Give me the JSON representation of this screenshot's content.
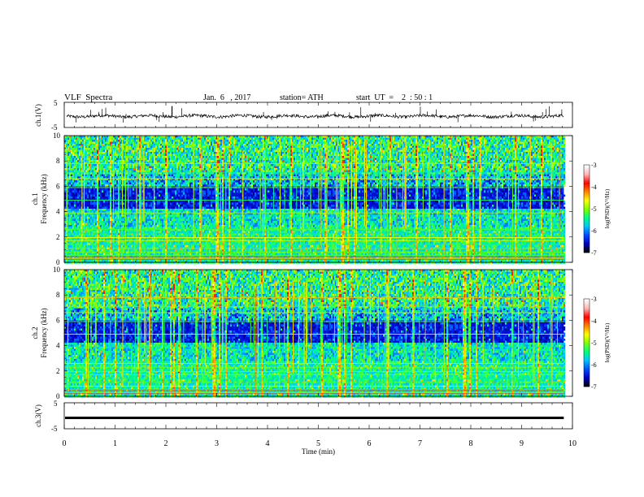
{
  "header": {
    "title": "VLF  Spectra",
    "date": "Jan.  6   , 2017",
    "station": "station= ATH",
    "start": "start  UT  =    2  : 50 : 1"
  },
  "chart_data": [
    {
      "type": "line",
      "panel": "ch1-waveform",
      "ylabel": "ch.1(V)",
      "ylim": [
        -5,
        5
      ],
      "yticks": [
        5,
        -5
      ],
      "series": [
        {
          "description_values_sampled": "noise trace around -0.5 V with spikes",
          "level": -0.5
        }
      ]
    },
    {
      "type": "heatmap",
      "panel": "ch1-spectrogram",
      "label_channel": "ch.1",
      "ylabel": "Frequency  (kHz)",
      "ylim": [
        0,
        10
      ],
      "yticks": [
        0,
        2,
        4,
        6,
        8,
        10
      ],
      "colorbar": {
        "label": "log(PSD)(V²/Hz)",
        "range": [
          -7,
          -3
        ],
        "ticks": [
          -3,
          -4,
          -5,
          -6,
          -7
        ]
      }
    },
    {
      "type": "heatmap",
      "panel": "ch2-spectrogram",
      "label_channel": "ch.2",
      "ylabel": "Frequency  (kHz)",
      "ylim": [
        0,
        10
      ],
      "yticks": [
        0,
        2,
        4,
        6,
        8,
        10
      ],
      "colorbar": {
        "label": "log(PSD)(V²/Hz)",
        "range": [
          -7,
          -3
        ],
        "ticks": [
          -3,
          -4,
          -5,
          -6,
          -7
        ]
      }
    },
    {
      "type": "line",
      "panel": "ch3-waveform",
      "ylabel": "ch.3(V)",
      "ylim": [
        -5,
        5
      ],
      "yticks": [
        5,
        -5
      ],
      "series": [
        {
          "level": -0.8
        }
      ]
    }
  ],
  "xaxis": {
    "label": "Time  (min)",
    "range": [
      0,
      10
    ],
    "ticks": [
      0,
      1,
      2,
      3,
      4,
      5,
      6,
      7,
      8,
      9,
      10
    ],
    "data_end": 9.83
  },
  "colors": {
    "spec_stops": [
      "#000000",
      "#0000c8",
      "#0050ff",
      "#00c8ff",
      "#00ff80",
      "#80ff00",
      "#ffff00",
      "#ff8000",
      "#ff0000",
      "#ffb4b4",
      "#ffffff"
    ]
  }
}
